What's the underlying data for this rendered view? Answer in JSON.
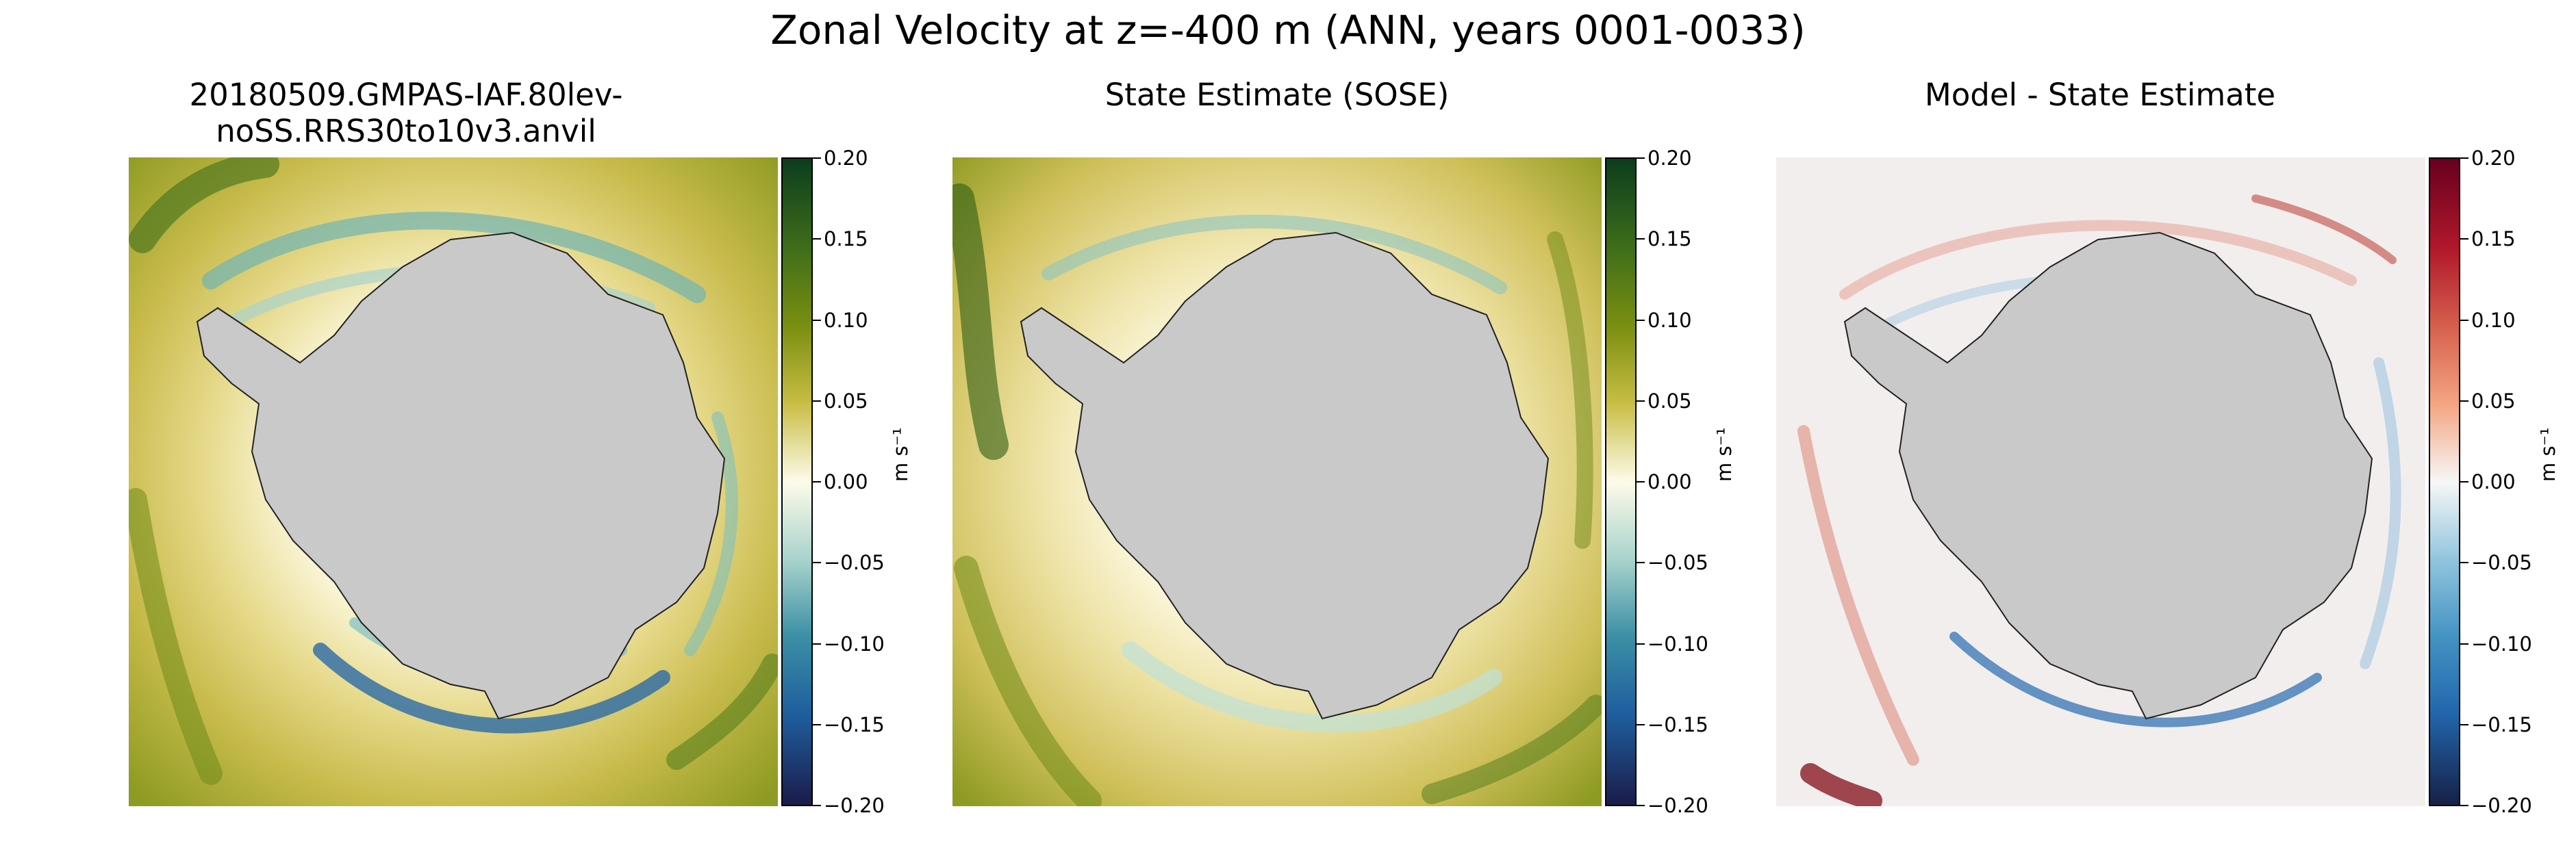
{
  "figure": {
    "suptitle": "Zonal Velocity at z=-400 m (ANN, years 0001-0033)"
  },
  "panels": [
    {
      "title": "20180509.GMPAS-IAF.80lev-noSS.RRS30to10v3.anvil",
      "colormap": "green-yellow-white-teal-navy"
    },
    {
      "title": "State Estimate (SOSE)",
      "colormap": "green-yellow-white-teal-navy"
    },
    {
      "title": "Model - State Estimate",
      "colormap": "red-white-blue"
    }
  ],
  "colorbars": [
    {
      "unit_label": "m s⁻¹",
      "ticks": [
        "0.20",
        "0.15",
        "0.10",
        "0.05",
        "0.00",
        "−0.05",
        "−0.10",
        "−0.15",
        "−0.20"
      ]
    },
    {
      "unit_label": "m s⁻¹",
      "ticks": [
        "0.20",
        "0.15",
        "0.10",
        "0.05",
        "0.00",
        "−0.05",
        "−0.10",
        "−0.15",
        "−0.20"
      ]
    },
    {
      "unit_label": "m s⁻¹",
      "ticks": [
        "0.20",
        "0.15",
        "0.10",
        "0.05",
        "0.00",
        "−0.05",
        "−0.10",
        "−0.15",
        "−0.20"
      ]
    }
  ],
  "chart_data": [
    {
      "type": "heatmap",
      "title": "20180509.GMPAS-IAF.80lev-noSS.RRS30to10v3.anvil",
      "projection": "south-polar stereographic",
      "variable": "Zonal Velocity",
      "colorbar": {
        "label": "m s⁻¹",
        "range": [
          -0.2,
          0.2
        ],
        "ticks": [
          -0.2,
          -0.15,
          -0.1,
          -0.05,
          0.0,
          0.05,
          0.1,
          0.15,
          0.2
        ]
      },
      "colors": {
        "max": "#0b3d1e",
        "high": "#7b8f10",
        "mid_high": "#e2d27a",
        "zero": "#fdfbe9",
        "mid_low": "#6bb6b8",
        "low": "#1f5e9e",
        "min": "#1a1c4a",
        "land": "#c9c9c9"
      }
    },
    {
      "type": "heatmap",
      "title": "State Estimate (SOSE)",
      "projection": "south-polar stereographic",
      "variable": "Zonal Velocity",
      "colorbar": {
        "label": "m s⁻¹",
        "range": [
          -0.2,
          0.2
        ],
        "ticks": [
          -0.2,
          -0.15,
          -0.1,
          -0.05,
          0.0,
          0.05,
          0.1,
          0.15,
          0.2
        ]
      },
      "colors": {
        "max": "#0b3d1e",
        "high": "#7b8f10",
        "mid_high": "#e2d27a",
        "zero": "#fdfbe9",
        "mid_low": "#6bb6b8",
        "low": "#1f5e9e",
        "min": "#1a1c4a",
        "land": "#c9c9c9"
      }
    },
    {
      "type": "heatmap",
      "title": "Model - State Estimate",
      "projection": "south-polar stereographic",
      "variable": "Zonal Velocity difference",
      "colorbar": {
        "label": "m s⁻¹",
        "range": [
          -0.2,
          0.2
        ],
        "ticks": [
          -0.2,
          -0.15,
          -0.1,
          -0.05,
          0.0,
          0.05,
          0.1,
          0.15,
          0.2
        ]
      },
      "colors": {
        "max": "#67001f",
        "high": "#c0493f",
        "mid_high": "#f0b9a3",
        "zero": "#f5f5f5",
        "mid_low": "#9fc5df",
        "low": "#2a64a6",
        "min": "#162046",
        "land": "#c9c9c9"
      }
    }
  ]
}
